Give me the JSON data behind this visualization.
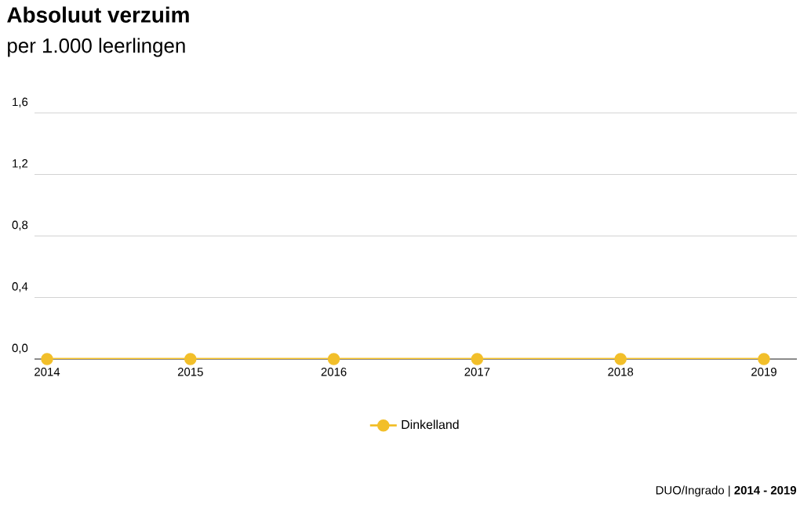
{
  "chart_data": {
    "type": "line",
    "title": "Absoluut verzuim",
    "subtitle": "per 1.000 leerlingen",
    "categories": [
      "2014",
      "2015",
      "2016",
      "2017",
      "2018",
      "2019"
    ],
    "series": [
      {
        "name": "Dinkelland",
        "color": "#f2bf2a",
        "values": [
          0,
          0,
          0,
          0,
          0,
          0
        ]
      }
    ],
    "ylim": [
      0,
      1.6
    ],
    "yticks": [
      {
        "value": 0,
        "label": "0,0"
      },
      {
        "value": 0.4,
        "label": "0,4"
      },
      {
        "value": 0.8,
        "label": "0,8"
      },
      {
        "value": 1.2,
        "label": "1,2"
      },
      {
        "value": 1.6,
        "label": "1,6"
      }
    ],
    "grid": "y",
    "legend": "bottom",
    "marker": "circle",
    "line_style": "solid",
    "annotations": [
      "DUO/Ingrado | **2014 - 2019**"
    ]
  }
}
